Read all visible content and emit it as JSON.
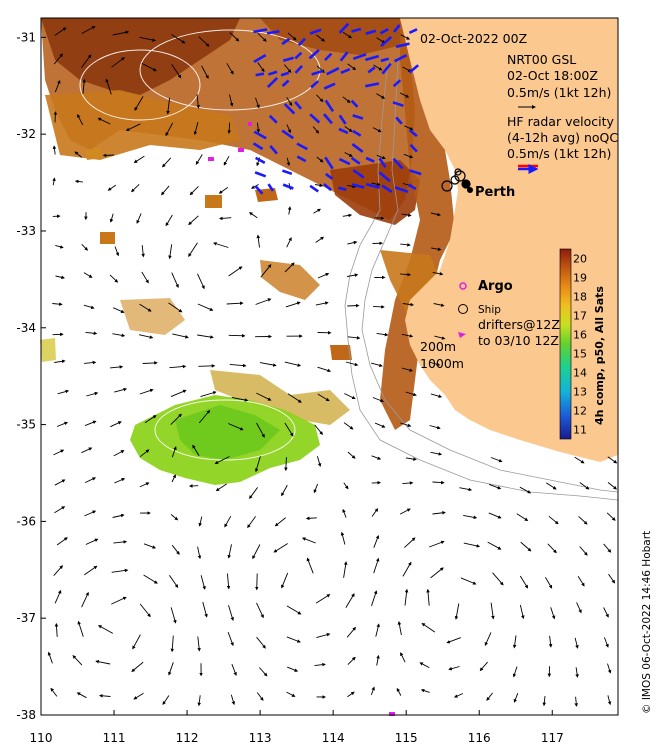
{
  "map": {
    "header": {
      "datetime": "02-Oct-2022 00Z",
      "product": "NRT00 GSL",
      "product_time": "02-Oct 18:00Z",
      "current_scale": "0.5m/s (1kt 12h)",
      "hf_title": "HF radar velocity",
      "hf_avg": "(4-12h avg) noQC",
      "hf_scale": "0.5m/s (1kt 12h)"
    },
    "place_label": "Perth",
    "legend": {
      "argo": "Argo",
      "ship": "Ship",
      "drifters_1": "drifters@12Z",
      "drifters_2": "to 03/10 12Z",
      "isobath_1": "200m",
      "isobath_2": "1000m"
    },
    "colorbar": {
      "label": "4h comp, p50, All Sats",
      "ticks": [
        "20",
        "19",
        "18",
        "17",
        "16",
        "15",
        "14",
        "13",
        "12",
        "11"
      ],
      "range": [
        10.5,
        20.5
      ]
    },
    "credit": "© IMOS 06-Oct-2022 14:46 Hobart",
    "x_ticks": [
      "110",
      "111",
      "112",
      "113",
      "114",
      "115",
      "116",
      "117"
    ],
    "y_ticks": [
      "-31",
      "-32",
      "-33",
      "-34",
      "-35",
      "-36",
      "-37",
      "-38"
    ],
    "lon_range": [
      110,
      117.9
    ],
    "lat_range": [
      -38,
      -30.8
    ]
  },
  "colors": {
    "land": "#fbc890",
    "hf_arrows": "#1a1aff",
    "argo": "#e020e0",
    "warm_sst": "#9c3c0a",
    "cool_sst": "#7fd018"
  }
}
